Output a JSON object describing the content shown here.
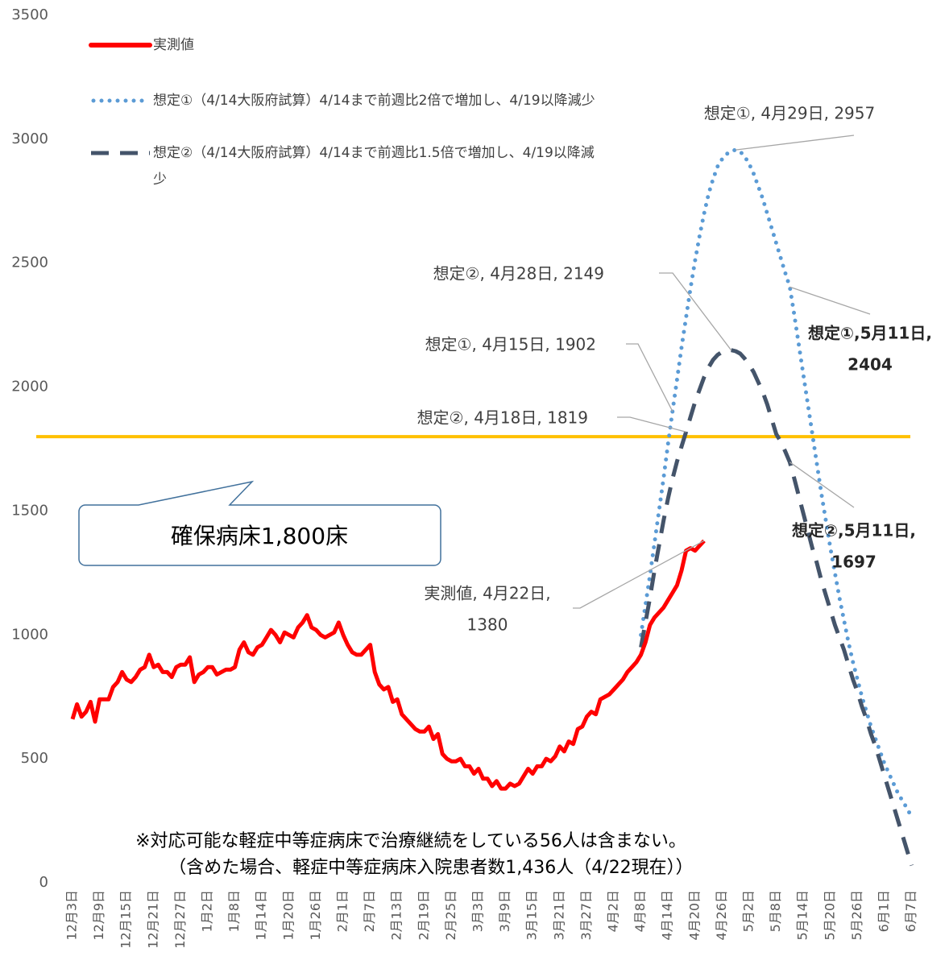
{
  "chart_data": {
    "type": "line",
    "categories": [
      "12月3日",
      null,
      null,
      null,
      null,
      null,
      "12月9日",
      null,
      null,
      null,
      null,
      null,
      "12月15日",
      null,
      null,
      null,
      null,
      null,
      "12月21日",
      null,
      null,
      null,
      null,
      null,
      "12月27日",
      null,
      null,
      null,
      null,
      null,
      "1月2日",
      null,
      null,
      null,
      null,
      null,
      "1月8日",
      null,
      null,
      null,
      null,
      null,
      "1月14日",
      null,
      null,
      null,
      null,
      null,
      "1月20日",
      null,
      null,
      null,
      null,
      null,
      "1月26日",
      null,
      null,
      null,
      null,
      null,
      "2月1日",
      null,
      null,
      null,
      null,
      null,
      "2月7日",
      null,
      null,
      null,
      null,
      null,
      "2月13日",
      null,
      null,
      null,
      null,
      null,
      "2月19日",
      null,
      null,
      null,
      null,
      null,
      "2月25日",
      null,
      null,
      null,
      null,
      null,
      "3月3日",
      null,
      null,
      null,
      null,
      null,
      "3月9日",
      null,
      null,
      null,
      null,
      null,
      "3月15日",
      null,
      null,
      null,
      null,
      null,
      "3月21日",
      null,
      null,
      null,
      null,
      null,
      "3月27日",
      null,
      null,
      null,
      null,
      null,
      "4月2日",
      null,
      null,
      null,
      null,
      null,
      "4月8日",
      null,
      null,
      null,
      null,
      null,
      "4月14日",
      null,
      null,
      null,
      null,
      null,
      "4月20日",
      null,
      null,
      null,
      null,
      null,
      "4月26日",
      null,
      null,
      null,
      null,
      null,
      "5月2日",
      null,
      null,
      null,
      null,
      null,
      "5月8日",
      null,
      null,
      null,
      null,
      null,
      "5月14日",
      null,
      null,
      null,
      null,
      null,
      "5月20日",
      null,
      null,
      null,
      null,
      null,
      "5月26日",
      null,
      null,
      null,
      null,
      null,
      "6月1日",
      null,
      null,
      null,
      null,
      null,
      "6月7日"
    ],
    "series": [
      {
        "name": "実測値",
        "color": "#ff0000",
        "style": "solid",
        "values": [
          660,
          720,
          670,
          690,
          730,
          650,
          740,
          740,
          740,
          790,
          810,
          850,
          820,
          810,
          830,
          860,
          870,
          920,
          870,
          880,
          850,
          850,
          830,
          870,
          880,
          880,
          910,
          810,
          840,
          850,
          870,
          870,
          840,
          850,
          860,
          860,
          870,
          940,
          970,
          930,
          920,
          950,
          960,
          990,
          1020,
          1000,
          970,
          1010,
          1000,
          990,
          1030,
          1050,
          1080,
          1030,
          1020,
          1000,
          990,
          1000,
          1010,
          1050,
          1000,
          960,
          930,
          920,
          920,
          940,
          960,
          850,
          800,
          780,
          790,
          730,
          740,
          680,
          660,
          640,
          620,
          610,
          610,
          630,
          580,
          600,
          520,
          500,
          490,
          490,
          500,
          470,
          470,
          440,
          460,
          420,
          420,
          390,
          410,
          380,
          380,
          400,
          390,
          400,
          430,
          460,
          440,
          470,
          470,
          500,
          490,
          510,
          550,
          530,
          570,
          560,
          620,
          630,
          670,
          690,
          680,
          740,
          750,
          760,
          780,
          800,
          820,
          850,
          870,
          890,
          920,
          970,
          1040,
          1070,
          1090,
          1110,
          1140,
          1170,
          1200,
          1260,
          1340,
          1350,
          1340,
          1360,
          1380,
          null,
          null,
          null,
          null,
          null,
          null,
          null,
          null,
          null,
          null,
          null,
          null,
          null,
          null,
          null,
          null,
          null,
          null,
          null,
          null,
          null,
          null,
          null,
          null,
          null,
          null,
          null,
          null,
          null,
          null,
          null,
          null,
          null,
          null,
          null,
          null,
          null,
          null,
          null,
          null,
          null,
          null,
          null,
          null,
          null,
          null
        ]
      },
      {
        "name": "想定①（4/14大阪府試算）4/14まで前週比2倍で増加し、4/19以降減少",
        "color": "#5b9bd5",
        "style": "dotted",
        "values": [
          null,
          null,
          null,
          null,
          null,
          null,
          null,
          null,
          null,
          null,
          null,
          null,
          null,
          null,
          null,
          null,
          null,
          null,
          null,
          null,
          null,
          null,
          null,
          null,
          null,
          null,
          null,
          null,
          null,
          null,
          null,
          null,
          null,
          null,
          null,
          null,
          null,
          null,
          null,
          null,
          null,
          null,
          null,
          null,
          null,
          null,
          null,
          null,
          null,
          null,
          null,
          null,
          null,
          null,
          null,
          null,
          null,
          null,
          null,
          null,
          null,
          null,
          null,
          null,
          null,
          null,
          null,
          null,
          null,
          null,
          null,
          null,
          null,
          null,
          null,
          null,
          null,
          null,
          null,
          null,
          null,
          null,
          null,
          null,
          null,
          null,
          null,
          null,
          null,
          null,
          null,
          null,
          null,
          null,
          null,
          null,
          null,
          null,
          null,
          null,
          null,
          null,
          null,
          null,
          null,
          null,
          null,
          null,
          null,
          null,
          null,
          null,
          null,
          null,
          null,
          null,
          null,
          null,
          null,
          null,
          null,
          null,
          null,
          null,
          null,
          null,
          1000,
          1120,
          1240,
          1370,
          1500,
          1630,
          1770,
          1902,
          2030,
          2160,
          2280,
          2400,
          2510,
          2610,
          2700,
          2780,
          2840,
          2890,
          2920,
          2940,
          2952,
          2957,
          2950,
          2930,
          2900,
          2860,
          2810,
          2760,
          2700,
          2640,
          2580,
          2520,
          2460,
          2404,
          2290,
          2170,
          2050,
          1930,
          1810,
          1690,
          1570,
          1460,
          1350,
          1250,
          1150,
          1060,
          970,
          890,
          820,
          750,
          690,
          630,
          580,
          530,
          480,
          440,
          400,
          360,
          330,
          300,
          265
        ]
      },
      {
        "name": "想定②（4/14大阪府試算）4/14まで前週比1.5倍で増加し、4/19以降減少",
        "color": "#44546a",
        "style": "dashed",
        "values": [
          null,
          null,
          null,
          null,
          null,
          null,
          null,
          null,
          null,
          null,
          null,
          null,
          null,
          null,
          null,
          null,
          null,
          null,
          null,
          null,
          null,
          null,
          null,
          null,
          null,
          null,
          null,
          null,
          null,
          null,
          null,
          null,
          null,
          null,
          null,
          null,
          null,
          null,
          null,
          null,
          null,
          null,
          null,
          null,
          null,
          null,
          null,
          null,
          null,
          null,
          null,
          null,
          null,
          null,
          null,
          null,
          null,
          null,
          null,
          null,
          null,
          null,
          null,
          null,
          null,
          null,
          null,
          null,
          null,
          null,
          null,
          null,
          null,
          null,
          null,
          null,
          null,
          null,
          null,
          null,
          null,
          null,
          null,
          null,
          null,
          null,
          null,
          null,
          null,
          null,
          null,
          null,
          null,
          null,
          null,
          null,
          null,
          null,
          null,
          null,
          null,
          null,
          null,
          null,
          null,
          null,
          null,
          null,
          null,
          null,
          null,
          null,
          null,
          null,
          null,
          null,
          null,
          null,
          null,
          null,
          null,
          null,
          null,
          null,
          null,
          null,
          950,
          1050,
          1150,
          1260,
          1360,
          1460,
          1550,
          1630,
          1700,
          1760,
          1819,
          1880,
          1940,
          1990,
          2040,
          2080,
          2110,
          2130,
          2142,
          2148,
          2149,
          2145,
          2135,
          2115,
          2090,
          2060,
          2020,
          1980,
          1930,
          1870,
          1810,
          1780,
          1740,
          1697,
          1630,
          1560,
          1490,
          1420,
          1350,
          1290,
          1220,
          1160,
          1100,
          1040,
          990,
          940,
          880,
          820,
          770,
          710,
          660,
          600,
          550,
          490,
          430,
          370,
          310,
          250,
          190,
          130,
          70
        ]
      }
    ],
    "ylim": [
      0,
      3500
    ],
    "yticks": [
      0,
      500,
      1000,
      1500,
      2000,
      2500,
      3000,
      3500
    ],
    "grid": false,
    "reference_line": {
      "value": 1800,
      "color": "#ffc000"
    },
    "callout": "確保病床1,800床",
    "annotations": [
      {
        "lines": [
          "想定①, 4月29日, 2957"
        ]
      },
      {
        "lines": [
          "想定②, 4月28日, 2149"
        ]
      },
      {
        "lines": [
          "想定①, 4月15日, 1902"
        ]
      },
      {
        "lines": [
          "想定②, 4月18日, 1819"
        ]
      },
      {
        "lines": [
          "実測値, 4月22日,",
          "1380"
        ]
      },
      {
        "lines": [
          "想定①,5月11日,",
          "2404"
        ]
      },
      {
        "lines": [
          "想定②,5月11日,",
          "1697"
        ]
      }
    ],
    "note": [
      "※対応可能な軽症中等症病床で治療継続をしている56人は含まない。",
      "（含めた場合、軽症中等症病床入院患者数1,436人（4/22現在））"
    ]
  }
}
